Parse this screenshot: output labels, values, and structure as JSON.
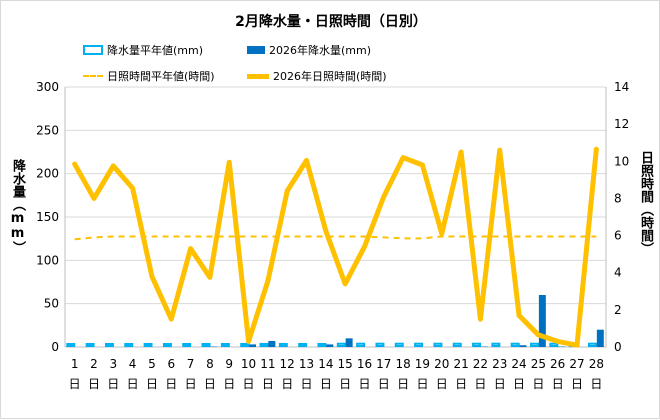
{
  "chart_data": {
    "type": "bar+line",
    "title": "2月降水量・日照時間（日別）",
    "ylabel_left": "降水量（mm）",
    "ylabel_right": "日照時間（時間）",
    "ylim_left": [
      0,
      300
    ],
    "ylim_right": [
      0,
      14
    ],
    "yticks_left": [
      "0",
      "50",
      "100",
      "150",
      "200",
      "250",
      "300"
    ],
    "yticks_right": [
      "0",
      "2",
      "4",
      "6",
      "8",
      "10",
      "12",
      "14"
    ],
    "categories": [
      "1",
      "2",
      "3",
      "4",
      "5",
      "6",
      "7",
      "8",
      "9",
      "10",
      "11",
      "12",
      "13",
      "14",
      "15",
      "16",
      "17",
      "18",
      "19",
      "20",
      "21",
      "22",
      "23",
      "24",
      "25",
      "26",
      "27",
      "28"
    ],
    "day_suffix": "日",
    "legend": {
      "precip_normal": "降水量平年値(mm)",
      "precip_2026": "2026年降水量(mm)",
      "sun_normal": "日照時間平年値(時間)",
      "sun_2026": "2026年日照時間(時間)"
    },
    "series": [
      {
        "name": "降水量平年値(mm)",
        "axis": "left",
        "type": "bar",
        "values": [
          3.5,
          3.5,
          3.5,
          3.5,
          3.5,
          3.5,
          3.5,
          3.5,
          3.5,
          3.5,
          3.5,
          3.5,
          3.5,
          3.5,
          3.8,
          3.8,
          3.8,
          3.8,
          3.8,
          3.8,
          3.8,
          3.8,
          3.8,
          3.8,
          3.8,
          3.8,
          3.8,
          3.8
        ]
      },
      {
        "name": "2026年降水量(mm)",
        "axis": "left",
        "type": "bar",
        "values": [
          0,
          0,
          0,
          0,
          0,
          0,
          0,
          0.5,
          0,
          3,
          7,
          0,
          0,
          3,
          10,
          0,
          0,
          0,
          0,
          0,
          0,
          0.5,
          0,
          2,
          60,
          0.5,
          0,
          20
        ]
      },
      {
        "name": "日照時間平年値(時間)",
        "axis": "right",
        "type": "dashed-line",
        "values": [
          5.8,
          5.9,
          5.95,
          5.95,
          5.95,
          5.95,
          5.95,
          5.95,
          5.95,
          5.95,
          5.95,
          5.95,
          5.95,
          5.95,
          5.95,
          5.95,
          5.9,
          5.85,
          5.85,
          5.95,
          5.95,
          5.95,
          5.95,
          5.95,
          5.95,
          5.95,
          5.95,
          5.95
        ]
      },
      {
        "name": "2026年日照時間(時間)",
        "axis": "right",
        "type": "line",
        "values": [
          9.85,
          8.0,
          9.75,
          8.55,
          3.8,
          1.5,
          5.3,
          3.75,
          9.95,
          0.3,
          3.55,
          8.4,
          10.05,
          6.25,
          3.4,
          5.4,
          8.1,
          10.2,
          9.8,
          6.1,
          10.5,
          1.5,
          10.6,
          1.7,
          0.65,
          0.3,
          0.1,
          10.65
        ]
      }
    ],
    "colors": {
      "precip_normal": "#00b0f0",
      "precip_2026": "#0070c0",
      "sun_normal": "#ffc000",
      "sun_2026": "#ffc000"
    },
    "grid": true
  }
}
